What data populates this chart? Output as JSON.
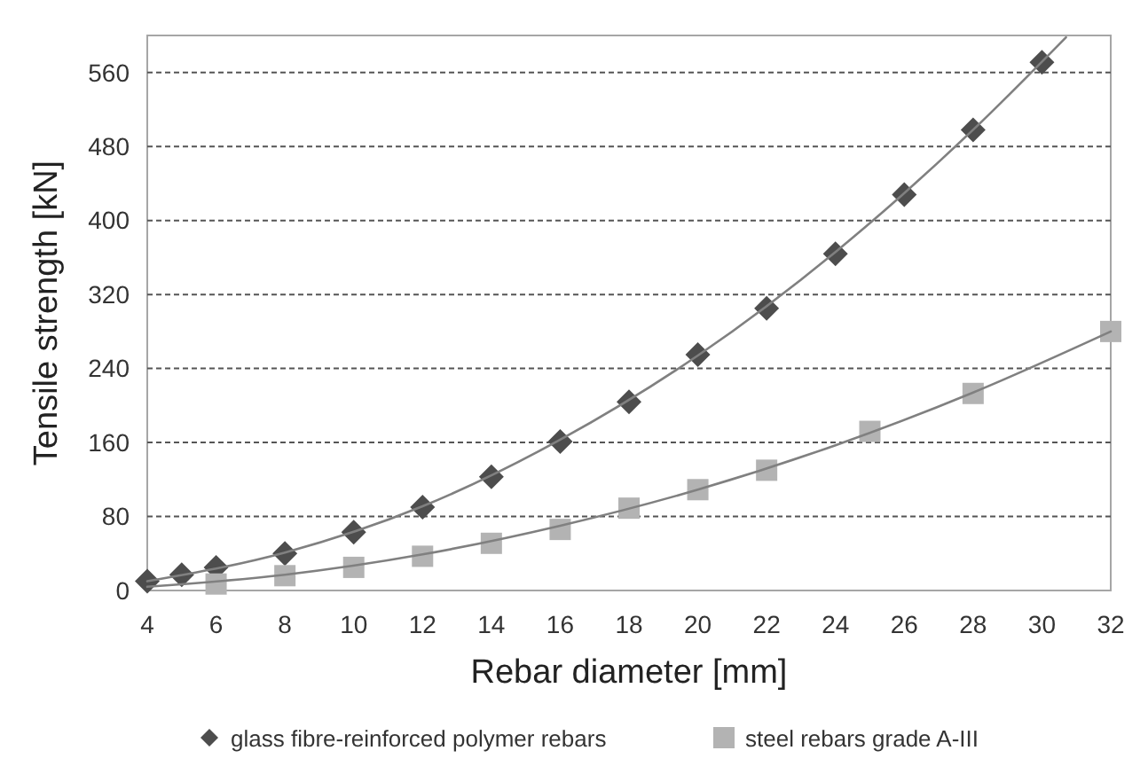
{
  "chart_data": {
    "type": "scatter",
    "xlabel": "Rebar diameter [mm]",
    "ylabel": "Tensile strength [kN]",
    "xlim": [
      4,
      32
    ],
    "xticks": [
      4,
      6,
      8,
      10,
      12,
      14,
      16,
      18,
      20,
      22,
      24,
      26,
      28,
      30,
      32
    ],
    "ylim": [
      0,
      600
    ],
    "yticks": [
      0,
      80,
      160,
      240,
      320,
      400,
      480,
      560
    ],
    "grid": "y",
    "legend": "bottom",
    "series": [
      {
        "name": "glass fibre-reinforced polymer rebars",
        "color": "#4d4d4d",
        "marker": "diamond",
        "x": [
          4,
          5,
          6,
          8,
          10,
          12,
          14,
          16,
          18,
          20,
          22,
          24,
          26,
          28,
          30
        ],
        "values": [
          10,
          17,
          25,
          40,
          63,
          90,
          123,
          161,
          204,
          255,
          305,
          364,
          428,
          498,
          571
        ]
      },
      {
        "name": "steel rebars grade A-III",
        "color": "#b3b3b3",
        "marker": "square",
        "x": [
          6,
          8,
          10,
          12,
          14,
          16,
          18,
          20,
          22,
          25,
          28,
          32
        ],
        "values": [
          7,
          16,
          25,
          37,
          51,
          66,
          89,
          109,
          130,
          172,
          213,
          280
        ]
      },
      {
        "type": "line",
        "color": "#808080",
        "marker": "none",
        "x": [
          4,
          8,
          12,
          16,
          20,
          24,
          28,
          30.7
        ],
        "values": [
          10,
          41,
          91,
          163,
          254,
          366,
          498,
          598
        ]
      },
      {
        "type": "line",
        "color": "#808080",
        "marker": "none",
        "x": [
          4,
          8,
          12,
          16,
          20,
          24,
          28,
          32
        ],
        "values": [
          4,
          17,
          39,
          70,
          109,
          157,
          214,
          280
        ]
      }
    ]
  }
}
